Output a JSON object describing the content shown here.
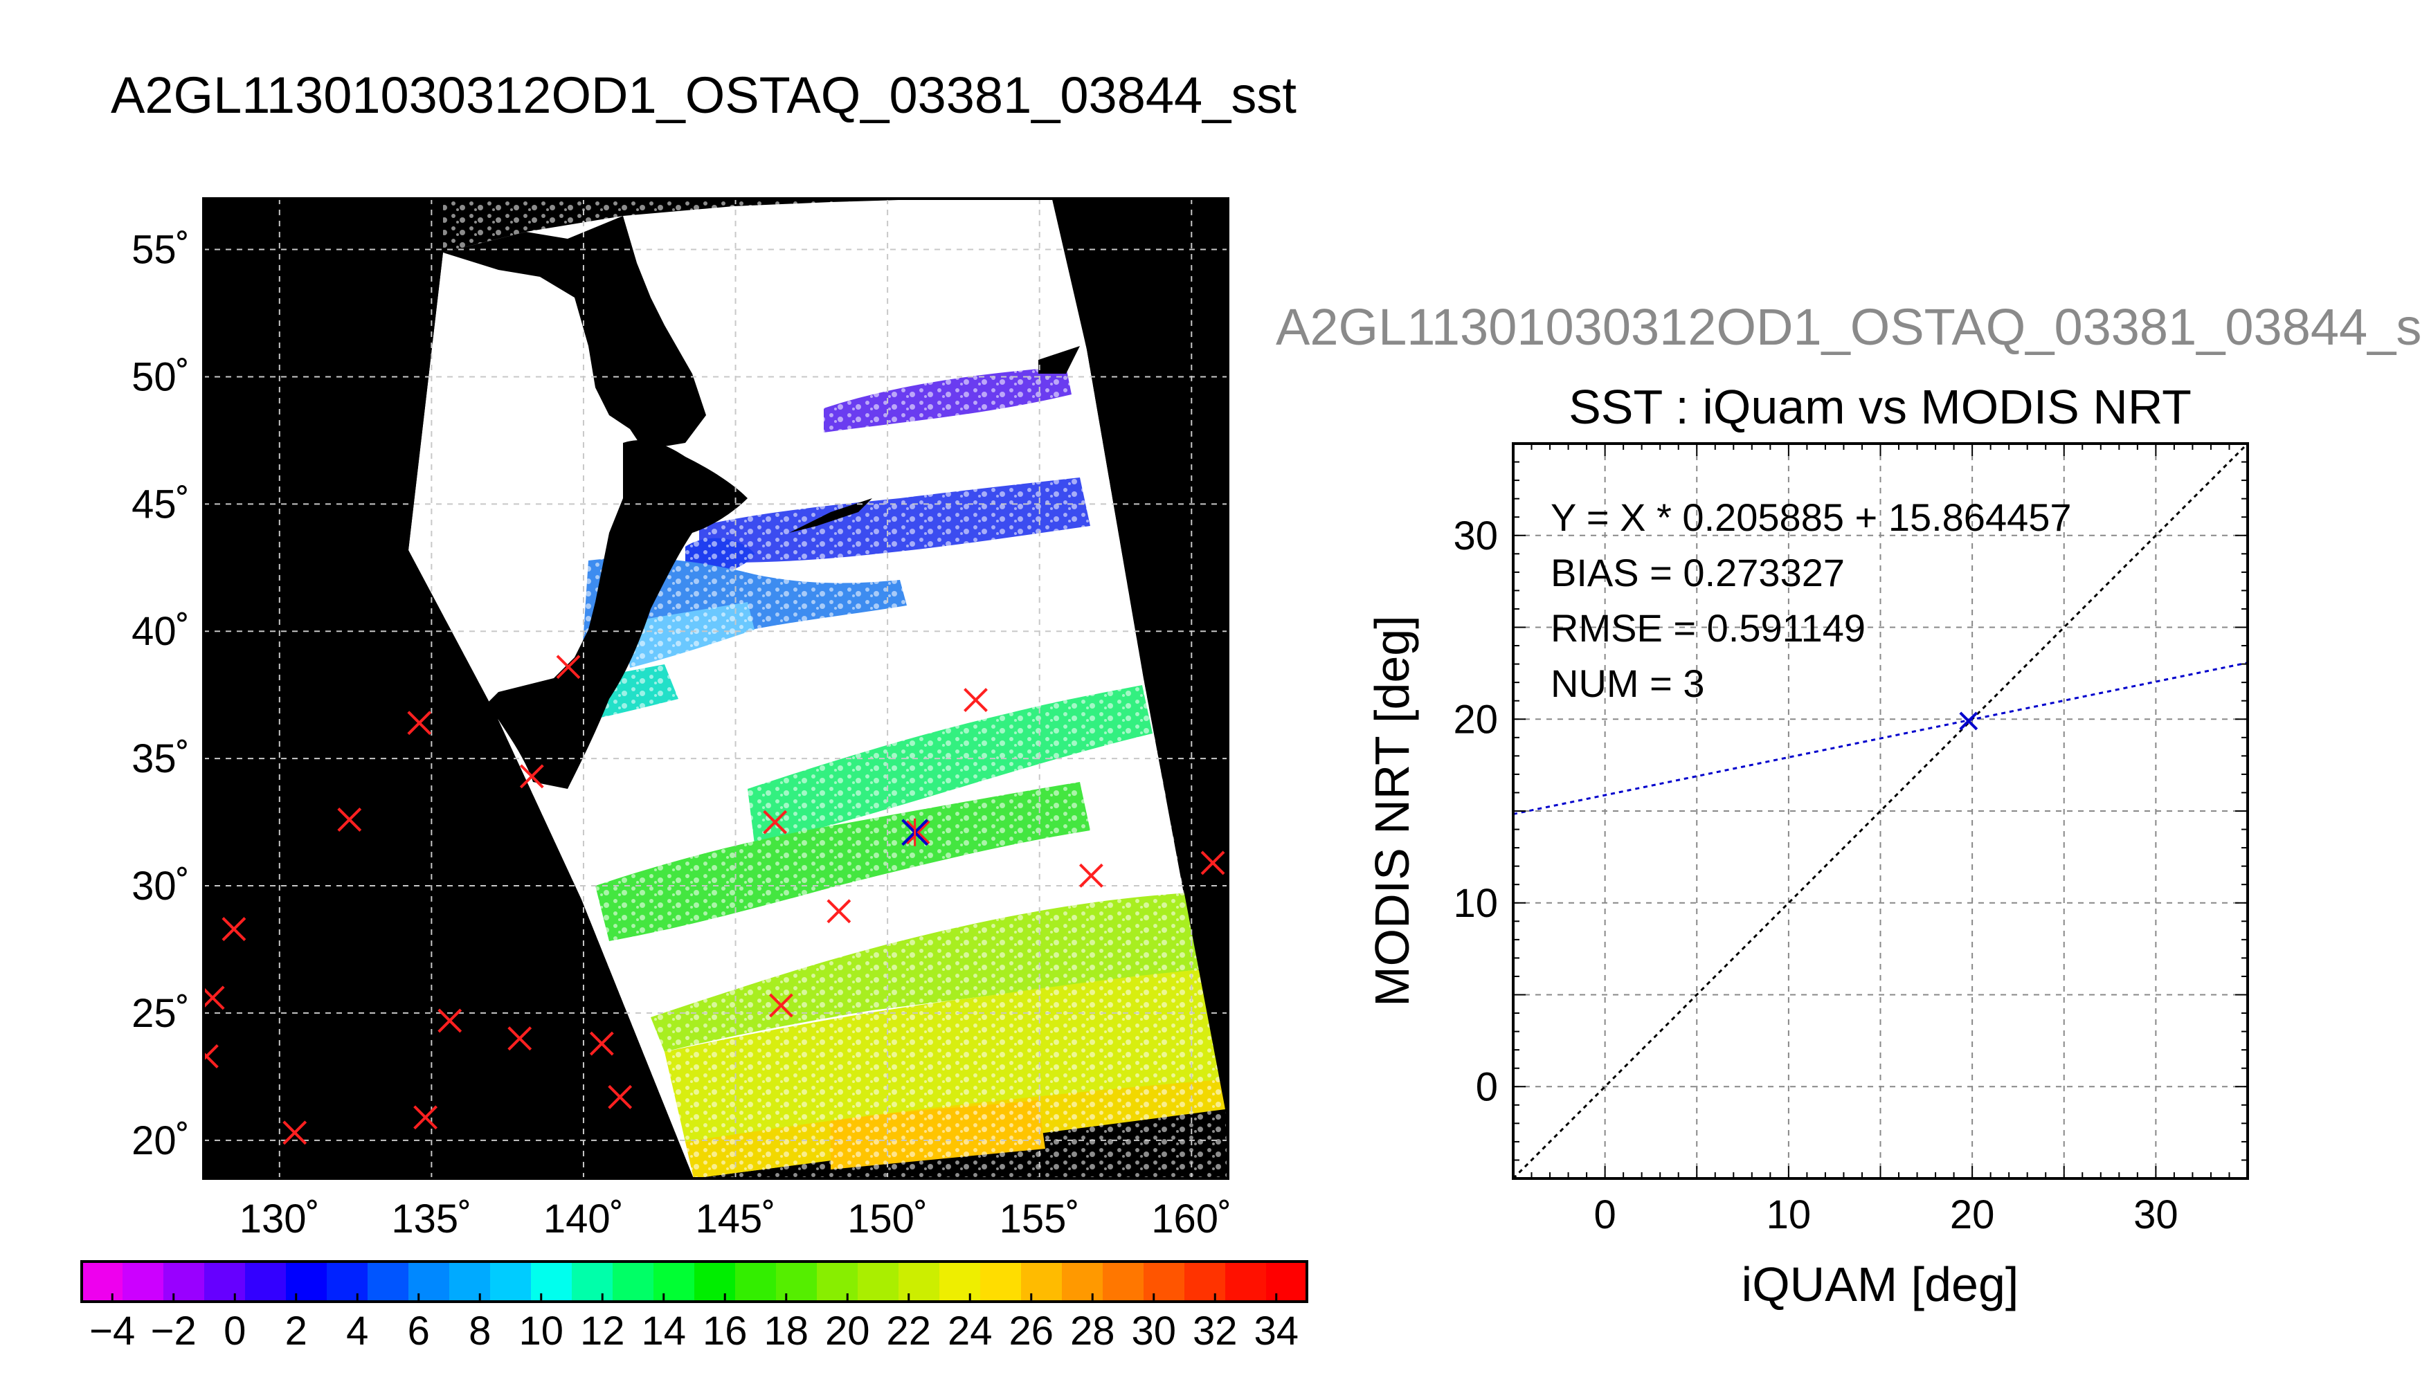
{
  "map_title": "A2GL11301030312OD1_OSTAQ_03381_03844_sst",
  "scatter_header": "A2GL11301030312OD1_OSTAQ_03381_03844_s",
  "map": {
    "lon_range": [
      127.5,
      161.2
    ],
    "lat_range": [
      18.5,
      57.0
    ],
    "lon_ticks": [
      "130˚",
      "135˚",
      "140˚",
      "145˚",
      "150˚",
      "155˚",
      "160˚"
    ],
    "lat_ticks": [
      "20˚",
      "25˚",
      "30˚",
      "35˚",
      "40˚",
      "45˚",
      "50˚",
      "55˚"
    ],
    "colors": {
      "land": "#000000",
      "cloud": "#ffffff",
      "grid": "#c8c8c8",
      "marker": "#ff2020",
      "match_marker": "#0000cc"
    }
  },
  "colorbar": {
    "labels": [
      "−4",
      "−2",
      "0",
      "2",
      "4",
      "6",
      "8",
      "10",
      "12",
      "14",
      "16",
      "18",
      "20",
      "22",
      "24",
      "26",
      "28",
      "30",
      "32",
      "34"
    ],
    "range": [
      -5,
      35
    ],
    "colors": [
      "#ee00ee",
      "#cc00ff",
      "#9900ff",
      "#6600ff",
      "#3300ff",
      "#0000ff",
      "#0022ff",
      "#0055ff",
      "#0088ff",
      "#00aaff",
      "#00ccff",
      "#00ffee",
      "#00ffaa",
      "#00ff66",
      "#00ff33",
      "#00ee00",
      "#33ee00",
      "#55ee00",
      "#88ee00",
      "#aaee00",
      "#ccee00",
      "#eeee00",
      "#ffdd00",
      "#ffbb00",
      "#ff9900",
      "#ff7700",
      "#ff5500",
      "#ff3300",
      "#ff1100",
      "#ff0000"
    ]
  },
  "chart_data": [
    {
      "type": "scatter",
      "title": "SST : iQuam vs MODIS NRT",
      "xlabel": "iQUAM [deg]",
      "ylabel": "MODIS NRT [deg]",
      "xlim": [
        -5,
        35
      ],
      "ylim": [
        -5,
        35
      ],
      "x_ticks": [
        0,
        10,
        20,
        30
      ],
      "y_ticks": [
        0,
        10,
        20,
        30
      ],
      "grid": true,
      "points": [
        {
          "x": 19.8,
          "y": 19.9
        }
      ],
      "regression": {
        "slope": 0.205885,
        "intercept": 15.864457,
        "color": "#0000cc"
      },
      "identity_line": {
        "color": "#000000"
      },
      "stats": [
        "Y = X * 0.205885 + 15.864457",
        "BIAS = 0.273327",
        "RMSE = 0.591149",
        "NUM = 3"
      ]
    },
    {
      "type": "scatter",
      "title": "",
      "xlabel": "",
      "ylabel": "",
      "xlim": [
        127.5,
        161.2
      ],
      "ylim": [
        18.5,
        57.0
      ],
      "iquam_points": [
        {
          "lon": 139.5,
          "lat": 38.6
        },
        {
          "lon": 134.6,
          "lat": 36.4
        },
        {
          "lon": 138.3,
          "lat": 34.3
        },
        {
          "lon": 132.3,
          "lat": 32.6
        },
        {
          "lon": 128.5,
          "lat": 28.3
        },
        {
          "lon": 127.8,
          "lat": 25.6
        },
        {
          "lon": 127.6,
          "lat": 23.3
        },
        {
          "lon": 135.6,
          "lat": 24.7
        },
        {
          "lon": 137.9,
          "lat": 24.0
        },
        {
          "lon": 140.6,
          "lat": 23.8
        },
        {
          "lon": 141.2,
          "lat": 21.7
        },
        {
          "lon": 134.8,
          "lat": 20.9
        },
        {
          "lon": 130.5,
          "lat": 20.3
        },
        {
          "lon": 146.3,
          "lat": 32.5
        },
        {
          "lon": 148.4,
          "lat": 29.0
        },
        {
          "lon": 146.5,
          "lat": 25.3
        },
        {
          "lon": 152.9,
          "lat": 37.3
        },
        {
          "lon": 151.0,
          "lat": 32.1
        },
        {
          "lon": 156.7,
          "lat": 30.4
        },
        {
          "lon": 160.7,
          "lat": 30.9
        }
      ],
      "matched_points": [
        {
          "lon": 150.9,
          "lat": 32.1
        }
      ]
    }
  ]
}
